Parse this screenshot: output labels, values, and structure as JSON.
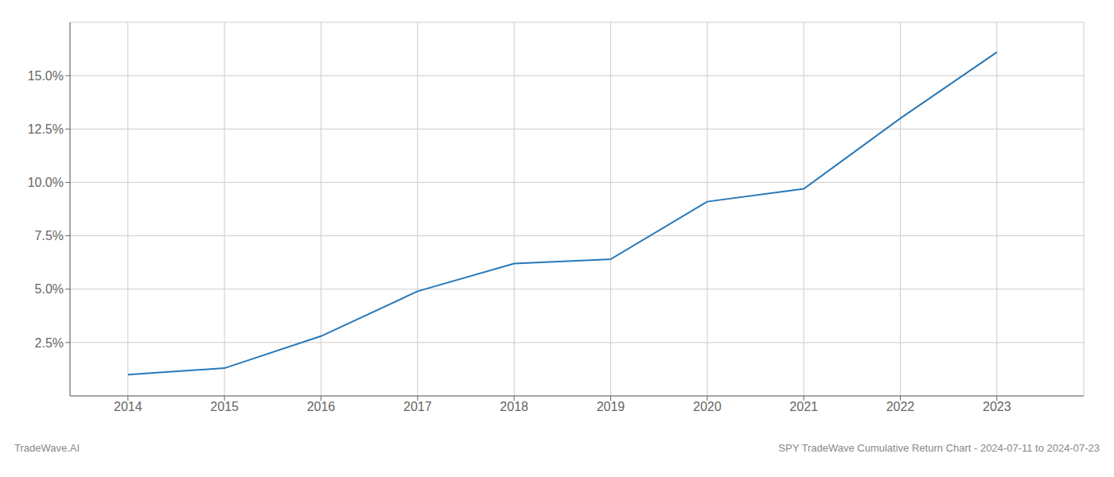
{
  "chart_data": {
    "type": "line",
    "x": [
      2014,
      2015,
      2016,
      2017,
      2018,
      2019,
      2020,
      2021,
      2022,
      2023
    ],
    "series": [
      {
        "name": "SPY TradeWave Cumulative Return",
        "color": "#2878b8",
        "values": [
          1.0,
          1.3,
          2.8,
          4.9,
          6.2,
          6.4,
          9.1,
          9.7,
          13.0,
          16.1
        ]
      }
    ],
    "xlim": [
      2013.4,
      2023.9
    ],
    "xticks": [
      2014,
      2015,
      2016,
      2017,
      2018,
      2019,
      2020,
      2021,
      2022,
      2023
    ],
    "ylim": [
      0.0,
      17.5
    ],
    "yticks": [
      {
        "value": 2.5,
        "label": "2.5%"
      },
      {
        "value": 5.0,
        "label": "5.0%"
      },
      {
        "value": 7.5,
        "label": "7.5%"
      },
      {
        "value": 10.0,
        "label": "10.0%"
      },
      {
        "value": 12.5,
        "label": "12.5%"
      },
      {
        "value": 15.0,
        "label": "15.0%"
      }
    ],
    "grid": true,
    "annotations": [
      "TradeWave.AI",
      "SPY TradeWave Cumulative Return Chart - 2024-07-11 to 2024-07-23"
    ]
  }
}
